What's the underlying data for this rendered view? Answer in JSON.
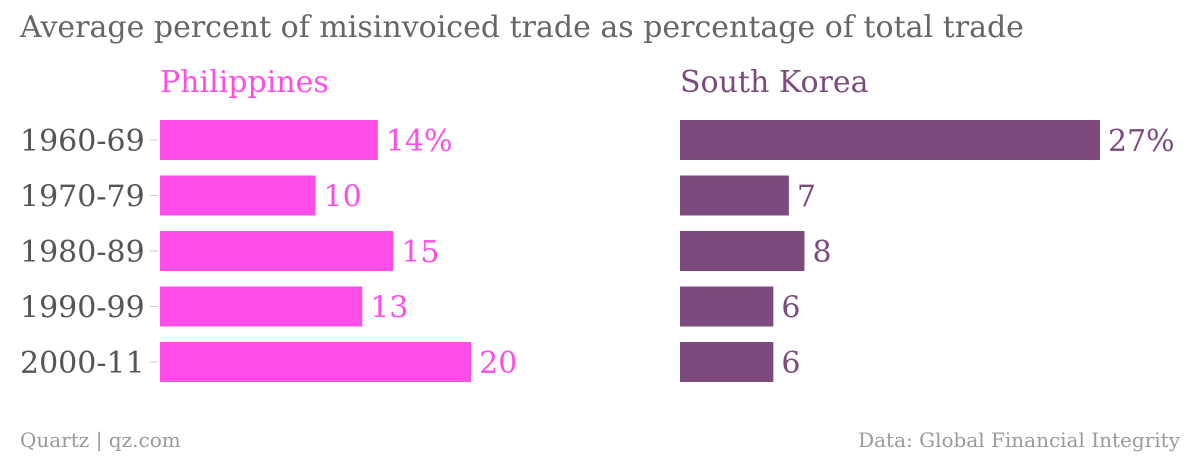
{
  "header": {
    "title": "Average percent of misinvoiced trade as percentage of total trade"
  },
  "footer": {
    "source_left": "Quartz | qz.com",
    "source_right": "Data: Global Financial Integrity"
  },
  "colors": {
    "philippines": "#ff4de8",
    "south_korea": "#7d4a7d",
    "text": "#555555",
    "muted": "#9a9a9a"
  },
  "chart_data": {
    "type": "bar",
    "orientation": "horizontal",
    "categories": [
      "1960-69",
      "1970-79",
      "1980-89",
      "1990-99",
      "2000-11"
    ],
    "panels": [
      {
        "name": "Philippines",
        "values": [
          14,
          10,
          15,
          13,
          20
        ],
        "labels": [
          "14%",
          "10",
          "15",
          "13",
          "20"
        ]
      },
      {
        "name": "South Korea",
        "values": [
          27,
          7,
          8,
          6,
          6
        ],
        "labels": [
          "27%",
          "7",
          "8",
          "6",
          "6"
        ]
      }
    ],
    "xlim": [
      0,
      27
    ],
    "grid": false,
    "legend": "none"
  }
}
